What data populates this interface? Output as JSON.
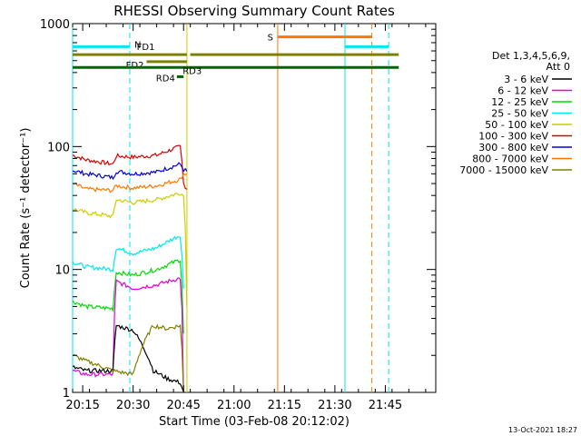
{
  "chart_data": {
    "type": "line",
    "title": "RHESSI Observing Summary Count Rates",
    "xlabel": "Start Time (03-Feb-08 20:12:02)",
    "ylabel": "Count Rate (s⁻¹ detector⁻¹)",
    "y_scale": "log",
    "ylim": [
      1,
      1000
    ],
    "xlim_minutes_after_2012": [
      0,
      108
    ],
    "x_ticks": [
      "20:15",
      "20:30",
      "20:45",
      "21:00",
      "21:15",
      "21:30",
      "21:45"
    ],
    "y_ticks": [
      "1",
      "10",
      "100",
      "1000"
    ],
    "legend": {
      "position": "right",
      "header": [
        "Det 1,3,4,5,6,9,",
        "Att 0"
      ],
      "entries": [
        {
          "label": "3 - 6 keV",
          "color": "#000000"
        },
        {
          "label": "6 - 12 keV",
          "color": "#e000e0"
        },
        {
          "label": "12 - 25 keV",
          "color": "#00dd00"
        },
        {
          "label": "25 - 50 keV",
          "color": "#00e8e8"
        },
        {
          "label": "50 - 100 keV",
          "color": "#cccc00"
        },
        {
          "label": "100 - 300 keV",
          "color": "#dd0000"
        },
        {
          "label": "300 - 800 keV",
          "color": "#0000dd"
        },
        {
          "label": "800 - 7000 keV",
          "color": "#ff7700"
        },
        {
          "label": "7000 - 15000 keV",
          "color": "#808000"
        }
      ]
    },
    "series": [
      {
        "name": "100 - 300 keV",
        "color": "#dd0000",
        "x": [
          "20:12",
          "20:16",
          "20:24",
          "20:25",
          "20:30",
          "20:37",
          "20:44",
          "20:45",
          "20:46"
        ],
        "y": [
          85,
          78,
          72,
          84,
          82,
          85,
          100,
          50,
          45
        ]
      },
      {
        "name": "300 - 800 keV",
        "color": "#0000dd",
        "x": [
          "20:12",
          "20:16",
          "20:24",
          "20:25",
          "20:30",
          "20:37",
          "20:44",
          "20:45",
          "20:46"
        ],
        "y": [
          64,
          60,
          56,
          63,
          60,
          62,
          72,
          65,
          63
        ]
      },
      {
        "name": "800 - 7000 keV",
        "color": "#ff7700",
        "x": [
          "20:12",
          "20:16",
          "20:24",
          "20:25",
          "20:30",
          "20:37",
          "20:44",
          "20:45",
          "20:46"
        ],
        "y": [
          50,
          45,
          44,
          48,
          46,
          48,
          54,
          60,
          60
        ]
      },
      {
        "name": "50 - 100 keV",
        "color": "#cccc00",
        "x": [
          "20:12",
          "20:16",
          "20:24",
          "20:25",
          "20:30",
          "20:37",
          "20:44",
          "20:45",
          "20:46"
        ],
        "y": [
          31,
          29,
          27,
          37,
          35,
          37,
          42,
          40,
          5
        ]
      },
      {
        "name": "25 - 50 keV",
        "color": "#00e8e8",
        "x": [
          "20:12",
          "20:16",
          "20:24",
          "20:25",
          "20:30",
          "20:37",
          "20:44",
          "20:45"
        ],
        "y": [
          11.5,
          10.5,
          10,
          15,
          13.5,
          15,
          19,
          7
        ]
      },
      {
        "name": "12 - 25 keV",
        "color": "#00dd00",
        "x": [
          "20:12",
          "20:16",
          "20:24",
          "20:25",
          "20:30",
          "20:37",
          "20:44",
          "20:45"
        ],
        "y": [
          5.5,
          5,
          4.8,
          9.5,
          9,
          10,
          12,
          3
        ]
      },
      {
        "name": "6 - 12 keV",
        "color": "#e000e0",
        "x": [
          "20:12",
          "20:16",
          "20:24",
          "20:25",
          "20:30",
          "20:37",
          "20:44",
          "20:45"
        ],
        "y": [
          1.5,
          1.4,
          1.4,
          8,
          7,
          7.5,
          8.5,
          1
        ]
      },
      {
        "name": "3 - 6 keV",
        "color": "#000000",
        "x": [
          "20:12",
          "20:16",
          "20:24",
          "20:25",
          "20:30",
          "20:36",
          "20:40",
          "20:44",
          "20:45"
        ],
        "y": [
          1.6,
          1.5,
          1.5,
          3.5,
          3.2,
          1.5,
          1.3,
          1.2,
          1
        ]
      },
      {
        "name": "7000 - 15000 keV",
        "color": "#808000",
        "x": [
          "20:12",
          "20:16",
          "20:24",
          "20:30",
          "20:36",
          "20:40",
          "20:44",
          "20:45"
        ],
        "y": [
          2,
          1.8,
          1.5,
          1.4,
          3.5,
          3.3,
          3.5,
          1
        ]
      }
    ],
    "flag_bars": [
      {
        "label": "N",
        "color": "#00e8e8",
        "level": 650,
        "segments": [
          [
            "20:12",
            "20:29"
          ],
          [
            "21:33",
            "21:46"
          ]
        ]
      },
      {
        "label": "S",
        "color": "#ff7700",
        "level": 780,
        "segments": [
          [
            "21:13",
            "21:41"
          ]
        ]
      },
      {
        "label": "FD1",
        "color": "#808000",
        "level": 560,
        "segments": [
          [
            "20:12",
            "20:46"
          ],
          [
            "20:47",
            "21:49"
          ]
        ]
      },
      {
        "label": "FD2",
        "color": "#808000",
        "level": 490,
        "segments": [
          [
            "20:34",
            "20:46"
          ]
        ]
      },
      {
        "label": "RD3",
        "color": "#006600",
        "level": 440,
        "segments": [
          [
            "20:12",
            "21:49"
          ]
        ]
      },
      {
        "label": "RD4",
        "color": "#006600",
        "level": 370,
        "segments": [
          [
            "20:43",
            "20:45"
          ]
        ]
      }
    ],
    "vertical_markers": [
      {
        "color": "#00e8e8",
        "style": "solid",
        "x": "20:12"
      },
      {
        "color": "#00e8e8",
        "style": "dashed",
        "x": "20:29"
      },
      {
        "color": "#ff7700",
        "style": "solid",
        "x": "21:13"
      },
      {
        "color": "#00e8e8",
        "style": "solid",
        "x": "21:33"
      },
      {
        "color": "#ff7700",
        "style": "dashed",
        "x": "21:41"
      },
      {
        "color": "#00e8e8",
        "style": "dashed",
        "x": "21:46"
      },
      {
        "color": "#cccc00",
        "style": "solid",
        "x": "20:46"
      }
    ]
  },
  "footer_stamp": "13-Oct-2021 18:27"
}
